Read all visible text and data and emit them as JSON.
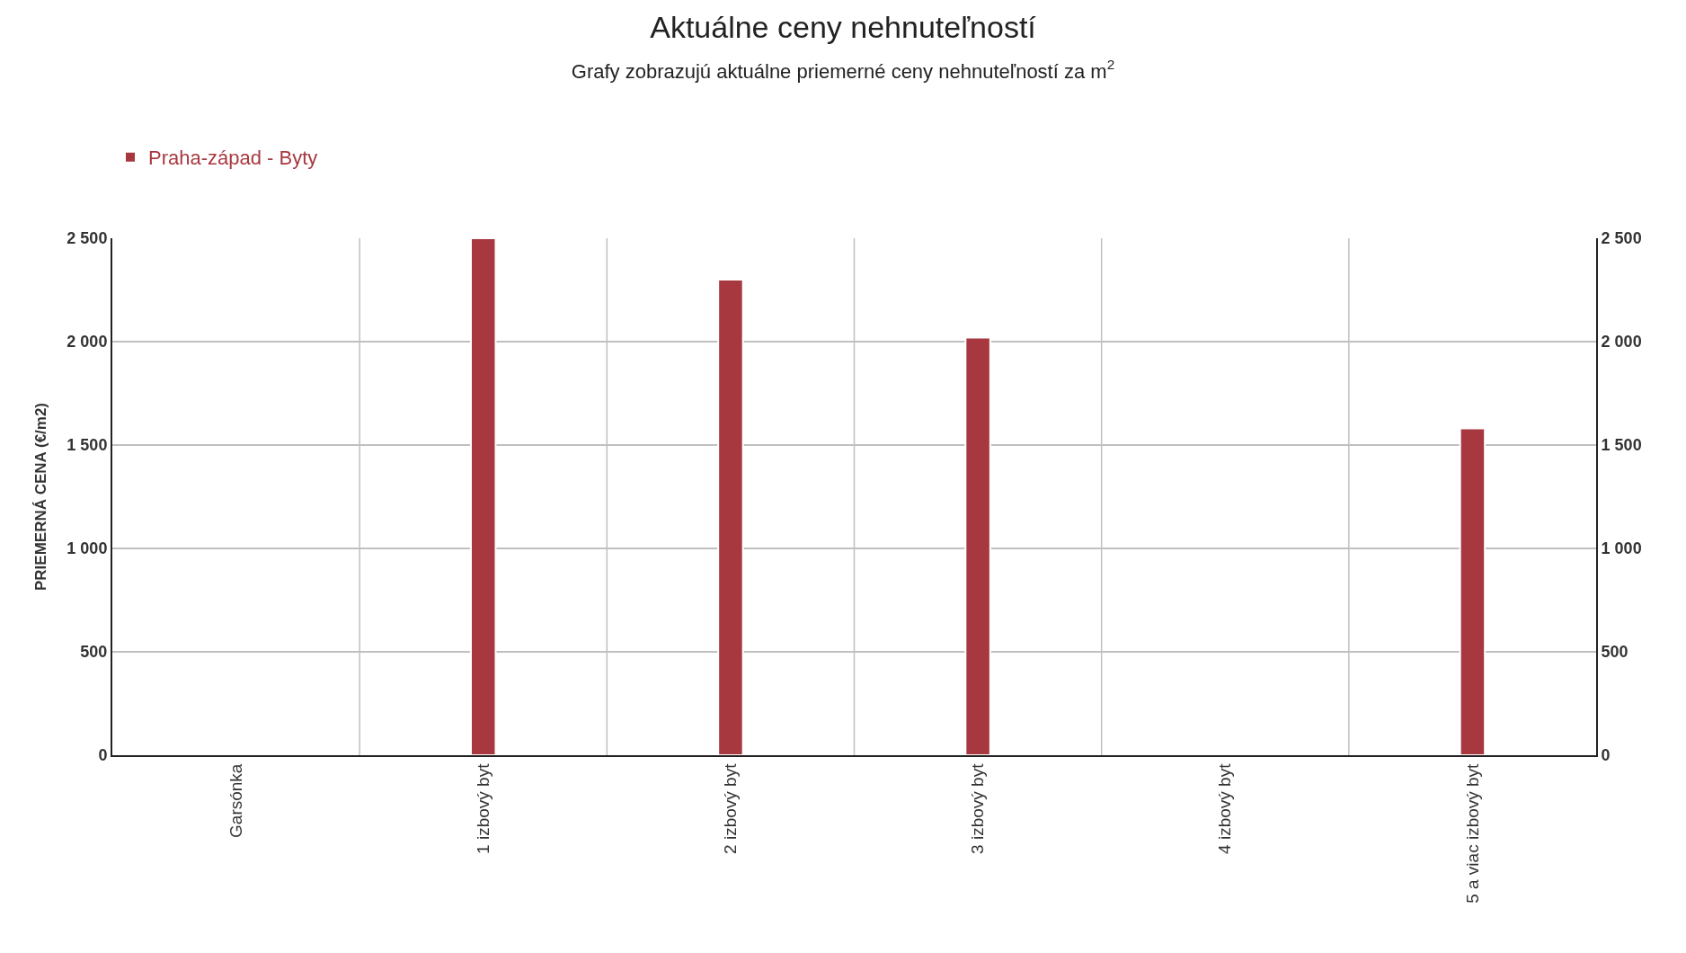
{
  "chart_data": {
    "type": "bar",
    "title": "Aktuálne ceny nehnuteľností",
    "subtitle": "Grafy zobrazujú aktuálne priemerné ceny nehnuteľností za m$^{2}$",
    "ylabel": "PRIEMERNÁ CENA (€/m2)",
    "categories": [
      "Garsónka",
      "1 izbový byt",
      "2 izbový byt",
      "3 izbový byt",
      "4 izbový byt",
      "5 a viac izbový byt"
    ],
    "series": [
      {
        "name": "Praha-západ - Byty",
        "color": "#a83840",
        "values": [
          null,
          2500,
          2300,
          2020,
          null,
          1580
        ]
      }
    ],
    "ylim": [
      0,
      2500
    ],
    "yticks": [
      0,
      500,
      {
        "value": 1000,
        "label": "1 000"
      },
      {
        "value": 1500,
        "label": "1 500"
      },
      {
        "value": 2000,
        "label": "2 000"
      },
      {
        "value": 2500,
        "label": "2 500"
      }
    ],
    "y2lim": [
      0,
      2500
    ],
    "y2ticks": [
      0,
      500,
      {
        "value": 1000,
        "label": "1 000"
      },
      {
        "value": 1500,
        "label": "1 500"
      },
      {
        "value": 2000,
        "label": "2 000"
      },
      {
        "value": 2500,
        "label": "2 500"
      }
    ],
    "grid": true,
    "legend": "top left"
  }
}
